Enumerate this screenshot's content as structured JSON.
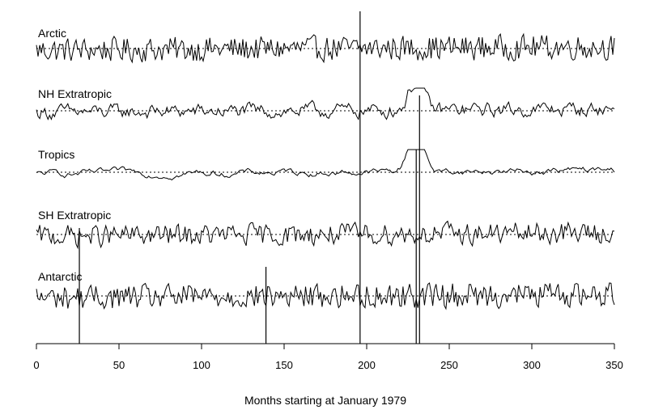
{
  "chart_data": {
    "type": "line",
    "xlabel": "Months starting at January 1979",
    "xlim": [
      0,
      350
    ],
    "x_ticks": [
      0,
      50,
      100,
      150,
      200,
      250,
      300,
      350
    ],
    "y_axis_visible": false,
    "grid": false,
    "n_months": 350,
    "series": [
      {
        "name": "Arctic",
        "amplitude": 1.6,
        "noise": 0.55,
        "smooth": 0.15,
        "line_style": "dotted"
      },
      {
        "name": "NH Extratropic",
        "amplitude": 0.6,
        "noise": 0.25,
        "smooth": 0.6,
        "line_style": "dotted"
      },
      {
        "name": "Tropics",
        "amplitude": 0.5,
        "noise": 0.12,
        "smooth": 0.85,
        "line_style": "dotted"
      },
      {
        "name": "SH Extratropic",
        "amplitude": 0.35,
        "noise": 0.2,
        "smooth": 0.3,
        "line_style": "dotted"
      },
      {
        "name": "Antarctic",
        "amplitude": 1.5,
        "noise": 0.55,
        "smooth": 0.15,
        "line_style": "dotted"
      }
    ],
    "vertical_markers": [
      26,
      139,
      196,
      230,
      232
    ]
  }
}
